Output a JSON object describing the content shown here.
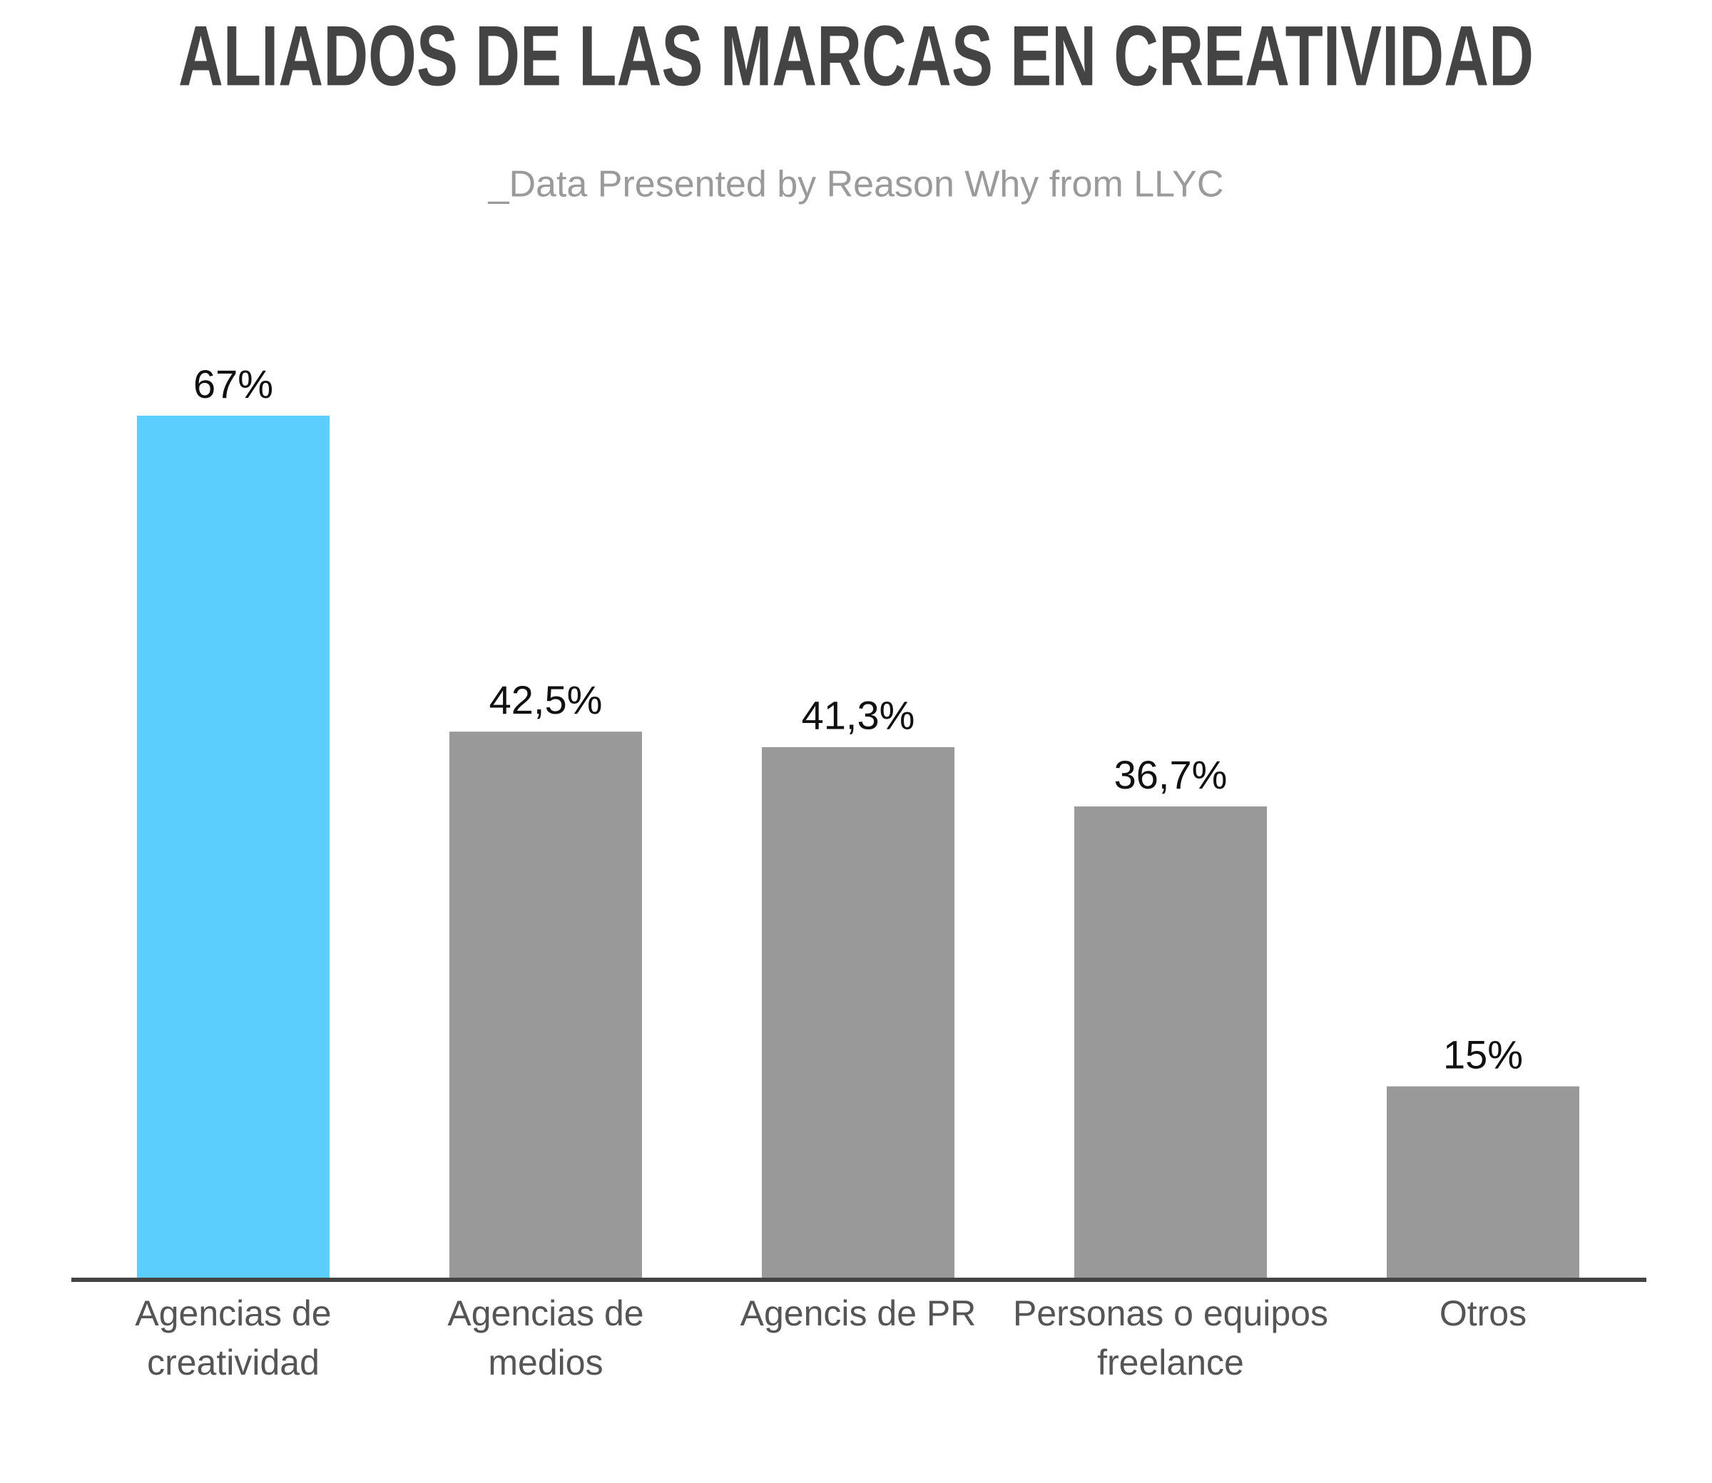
{
  "chart_data": {
    "type": "bar",
    "title": "ALIADOS DE LAS MARCAS EN CREATIVIDAD",
    "subtitle": "_Data Presented by Reason Why from LLYC",
    "categories": [
      [
        "Agencias de",
        "creatividad"
      ],
      [
        "Agencias de",
        "medios"
      ],
      [
        "Agencis de PR"
      ],
      [
        "Personas o equipos",
        "freelance"
      ],
      [
        "Otros"
      ]
    ],
    "values": [
      67,
      42.5,
      41.3,
      36.7,
      15
    ],
    "value_labels": [
      "67%",
      "42,5%",
      "41,3%",
      "36,7%",
      "15%"
    ],
    "colors": [
      "#5bcefd",
      "#999999",
      "#999999",
      "#999999",
      "#999999"
    ],
    "grid": false
  }
}
